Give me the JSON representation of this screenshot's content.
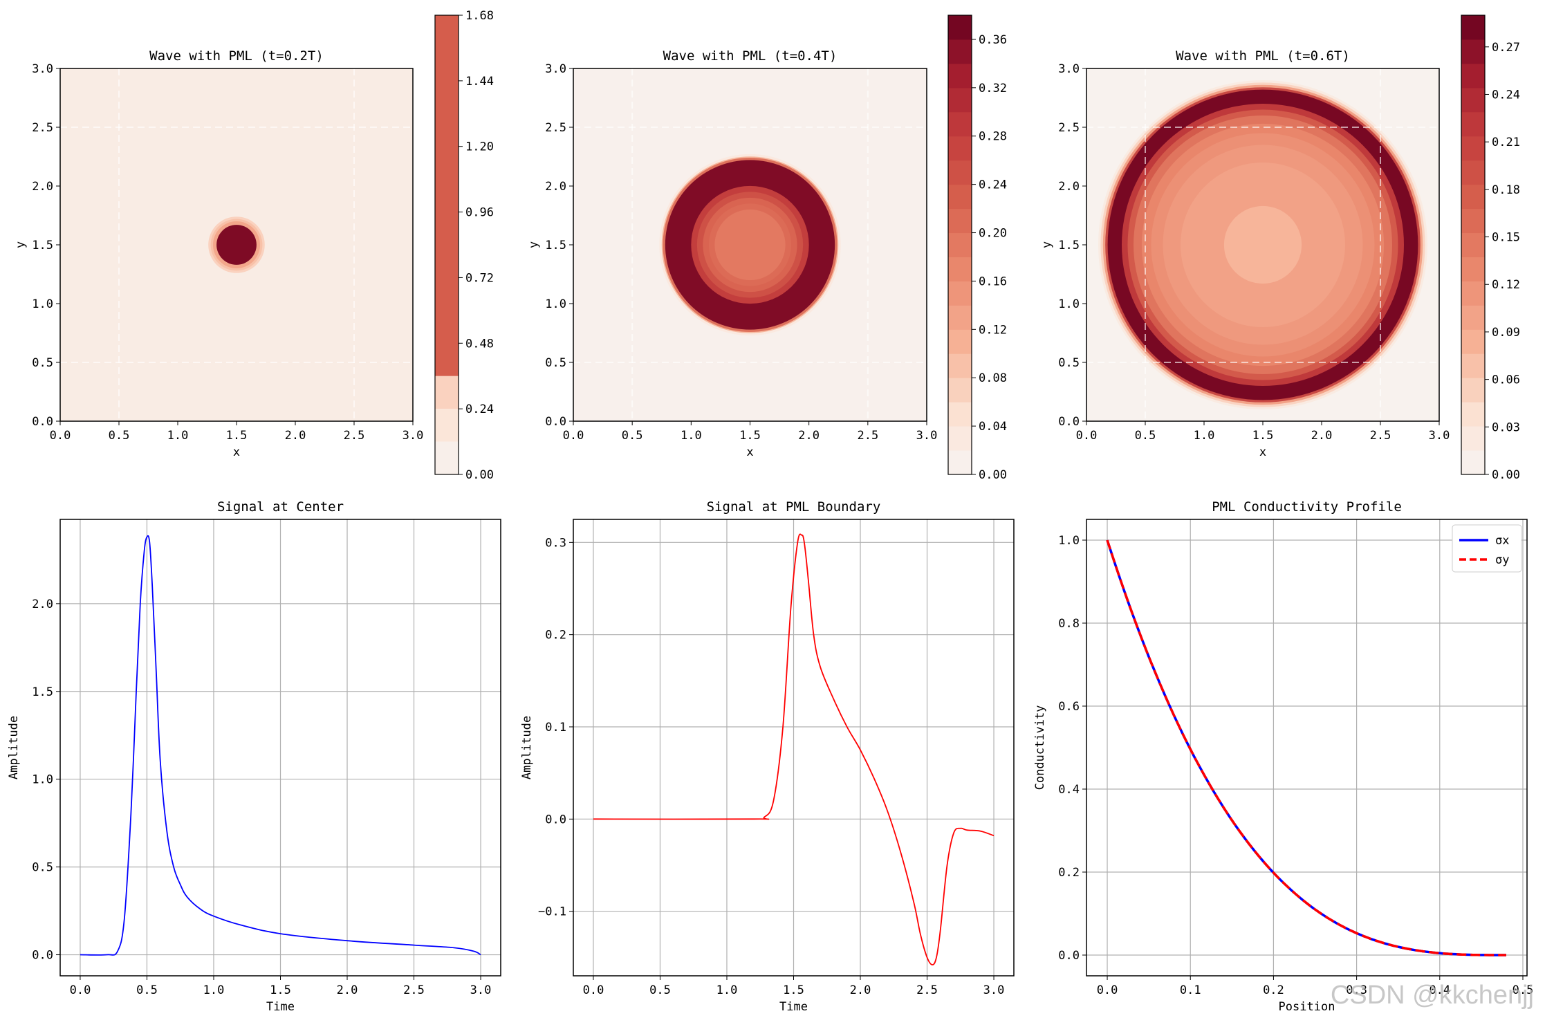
{
  "chart_data": [
    {
      "type": "heatmap",
      "title": "Wave with PML (t=0.2T)",
      "xlabel": "x",
      "ylabel": "y",
      "xlim": [
        0,
        3
      ],
      "ylim": [
        0,
        3
      ],
      "xticks": [
        "0.0",
        "0.5",
        "1.0",
        "1.5",
        "2.0",
        "2.5",
        "3.0"
      ],
      "yticks": [
        "0.0",
        "0.5",
        "1.0",
        "1.5",
        "2.0",
        "2.5",
        "3.0"
      ],
      "center": [
        1.5,
        1.5
      ],
      "rings": [
        {
          "r": 0.24,
          "level": 0.3
        },
        {
          "r": 0.22,
          "level": 0.4
        },
        {
          "r": 0.2,
          "level": 0.55
        },
        {
          "r": 0.17,
          "level": 1.6
        }
      ],
      "background_level": 0.1,
      "pml_lines": [
        0.5,
        2.5
      ],
      "colorbar": {
        "ticks": [
          "0.00",
          "0.24",
          "0.48",
          "0.72",
          "0.96",
          "1.20",
          "1.44",
          "1.68"
        ],
        "range": [
          0,
          1.68
        ],
        "levels": [
          0.0,
          0.12,
          0.24,
          0.36,
          1.68
        ]
      }
    },
    {
      "type": "heatmap",
      "title": "Wave with PML (t=0.4T)",
      "xlabel": "x",
      "ylabel": "y",
      "xlim": [
        0,
        3
      ],
      "ylim": [
        0,
        3
      ],
      "xticks": [
        "0.0",
        "0.5",
        "1.0",
        "1.5",
        "2.0",
        "2.5",
        "3.0"
      ],
      "yticks": [
        "0.0",
        "0.5",
        "1.0",
        "1.5",
        "2.0",
        "2.5",
        "3.0"
      ],
      "center": [
        1.5,
        1.5
      ],
      "rings": [
        {
          "r": 0.77,
          "level": 0.03
        },
        {
          "r": 0.75,
          "level": 0.1
        },
        {
          "r": 0.74,
          "level": 0.2
        },
        {
          "r": 0.72,
          "level": 0.36
        },
        {
          "r": 0.5,
          "level": 0.28
        },
        {
          "r": 0.45,
          "level": 0.25
        },
        {
          "r": 0.4,
          "level": 0.22
        },
        {
          "r": 0.35,
          "level": 0.21
        },
        {
          "r": 0.3,
          "level": 0.19
        }
      ],
      "background_level": 0.01,
      "pml_lines": [
        0.5,
        2.5
      ],
      "colorbar": {
        "ticks": [
          "0.00",
          "0.04",
          "0.08",
          "0.12",
          "0.16",
          "0.20",
          "0.24",
          "0.28",
          "0.32",
          "0.36"
        ],
        "range": [
          0,
          0.38
        ]
      }
    },
    {
      "type": "heatmap",
      "title": "Wave with PML (t=0.6T)",
      "xlabel": "x",
      "ylabel": "y",
      "xlim": [
        0,
        3
      ],
      "ylim": [
        0,
        3
      ],
      "xticks": [
        "0.0",
        "0.5",
        "1.0",
        "1.5",
        "2.0",
        "2.5",
        "3.0"
      ],
      "yticks": [
        "0.0",
        "0.5",
        "1.0",
        "1.5",
        "2.0",
        "2.5",
        "3.0"
      ],
      "center": [
        1.5,
        1.5
      ],
      "rings": [
        {
          "r": 1.4,
          "level": 0.02
        },
        {
          "r": 1.38,
          "level": 0.05
        },
        {
          "r": 1.36,
          "level": 0.1
        },
        {
          "r": 1.34,
          "level": 0.2
        },
        {
          "r": 1.32,
          "level": 0.28
        },
        {
          "r": 1.2,
          "level": 0.22
        },
        {
          "r": 1.15,
          "level": 0.18
        },
        {
          "r": 1.1,
          "level": 0.15
        },
        {
          "r": 1.03,
          "level": 0.13
        },
        {
          "r": 0.95,
          "level": 0.12
        },
        {
          "r": 0.85,
          "level": 0.11
        },
        {
          "r": 0.7,
          "level": 0.1
        },
        {
          "r": 0.33,
          "level": 0.08
        }
      ],
      "background_level": 0.005,
      "pml_lines": [
        0.5,
        2.5
      ],
      "colorbar": {
        "ticks": [
          "0.00",
          "0.03",
          "0.06",
          "0.09",
          "0.12",
          "0.15",
          "0.18",
          "0.21",
          "0.24",
          "0.27"
        ],
        "range": [
          0,
          0.29
        ]
      }
    },
    {
      "type": "line",
      "title": "Signal at Center",
      "xlabel": "Time",
      "ylabel": "Amplitude",
      "xlim": [
        -0.15,
        3.15
      ],
      "ylim": [
        -0.12,
        2.48
      ],
      "xticks": [
        0.0,
        0.5,
        1.0,
        1.5,
        2.0,
        2.5,
        3.0
      ],
      "xtick_labels": [
        "0.0",
        "0.5",
        "1.0",
        "1.5",
        "2.0",
        "2.5",
        "3.0"
      ],
      "yticks": [
        0.0,
        0.5,
        1.0,
        1.5,
        2.0
      ],
      "ytick_labels": [
        "0.0",
        "0.5",
        "1.0",
        "1.5",
        "2.0"
      ],
      "grid": true,
      "series": [
        {
          "name": "center",
          "color": "#0000ff",
          "x": [
            0,
            0.2,
            0.28,
            0.33,
            0.38,
            0.42,
            0.45,
            0.48,
            0.5,
            0.52,
            0.54,
            0.57,
            0.6,
            0.65,
            0.7,
            0.75,
            0.8,
            0.9,
            1.0,
            1.2,
            1.5,
            2.0,
            2.5,
            2.8,
            2.95,
            3.0
          ],
          "y": [
            0,
            0,
            0.02,
            0.2,
            0.8,
            1.5,
            2.0,
            2.3,
            2.38,
            2.35,
            2.1,
            1.6,
            1.1,
            0.7,
            0.5,
            0.4,
            0.33,
            0.26,
            0.22,
            0.17,
            0.12,
            0.08,
            0.055,
            0.04,
            0.02,
            0.0
          ]
        }
      ]
    },
    {
      "type": "line",
      "title": "Signal at PML Boundary",
      "xlabel": "Time",
      "ylabel": "Amplitude",
      "xlim": [
        -0.15,
        3.15
      ],
      "ylim": [
        -0.17,
        0.325
      ],
      "xticks": [
        0.0,
        0.5,
        1.0,
        1.5,
        2.0,
        2.5,
        3.0
      ],
      "xtick_labels": [
        "0.0",
        "0.5",
        "1.0",
        "1.5",
        "2.0",
        "2.5",
        "3.0"
      ],
      "yticks": [
        -0.1,
        0.0,
        0.1,
        0.2,
        0.3
      ],
      "ytick_labels": [
        "−0.1",
        "0.0",
        "0.1",
        "0.2",
        "0.3"
      ],
      "grid": true,
      "series": [
        {
          "name": "pml",
          "color": "#ff0000",
          "x": [
            0,
            1.2,
            1.28,
            1.35,
            1.42,
            1.48,
            1.53,
            1.56,
            1.58,
            1.61,
            1.65,
            1.7,
            1.8,
            1.9,
            2.0,
            2.1,
            2.2,
            2.3,
            2.4,
            2.45,
            2.5,
            2.54,
            2.57,
            2.6,
            2.65,
            2.7,
            2.75,
            2.8,
            2.9,
            3.0
          ],
          "y": [
            0,
            0,
            0.002,
            0.02,
            0.1,
            0.23,
            0.3,
            0.308,
            0.3,
            0.26,
            0.2,
            0.165,
            0.13,
            0.1,
            0.075,
            0.045,
            0.01,
            -0.035,
            -0.09,
            -0.125,
            -0.15,
            -0.158,
            -0.15,
            -0.12,
            -0.05,
            -0.015,
            -0.01,
            -0.012,
            -0.013,
            -0.018
          ]
        }
      ]
    },
    {
      "type": "line",
      "title": "PML Conductivity Profile",
      "xlabel": "Position",
      "ylabel": "Conductivity",
      "xlim": [
        -0.025,
        0.505
      ],
      "ylim": [
        -0.05,
        1.05
      ],
      "xticks": [
        0.0,
        0.1,
        0.2,
        0.3,
        0.4,
        0.5
      ],
      "xtick_labels": [
        "0.0",
        "0.1",
        "0.2",
        "0.3",
        "0.4",
        "0.5"
      ],
      "yticks": [
        0.0,
        0.2,
        0.4,
        0.6,
        0.8,
        1.0
      ],
      "ytick_labels": [
        "0.0",
        "0.2",
        "0.4",
        "0.6",
        "0.8",
        "1.0"
      ],
      "grid": true,
      "legend": "top-right",
      "series": [
        {
          "name": "σx",
          "color": "#0000ff",
          "style": "solid",
          "x_max": 0.48,
          "model": "(1 - x/0.48)^3"
        },
        {
          "name": "σy",
          "color": "#ff0000",
          "style": "dashed",
          "x_max": 0.48,
          "model": "(1 - x/0.48)^3"
        }
      ]
    }
  ],
  "watermark": "CSDN @kkchenjj"
}
